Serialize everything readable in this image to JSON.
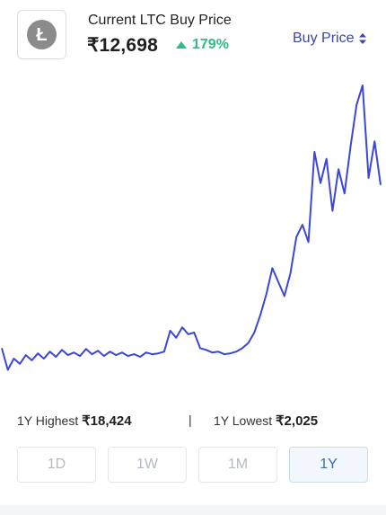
{
  "header": {
    "title": "Current LTC Buy Price",
    "price": "₹12,698",
    "change": "179%",
    "change_color": "#2ebd85",
    "logo_icon": "litecoin-logo",
    "logo_letter": "Ł"
  },
  "price_selector": {
    "label": "Buy Price",
    "icon": "sort-arrows-icon",
    "color": "#3d46a8"
  },
  "chart_data": {
    "type": "line",
    "line_color": "#3b47d6",
    "y_unit": "INR",
    "grid": false,
    "series": [
      {
        "values": [
          3300,
          2050,
          2700,
          2400,
          2900,
          2600,
          3000,
          2700,
          3100,
          2800,
          3200,
          2900,
          3050,
          2850,
          3250,
          2950,
          3150,
          2850,
          3100,
          2900,
          3050,
          2850,
          2950,
          2800,
          3050,
          2950,
          3000,
          3100,
          4300,
          3900,
          4500,
          4100,
          4200,
          3300,
          3200,
          3050,
          3100,
          2950,
          3000,
          3100,
          3300,
          3600,
          4200,
          5200,
          6400,
          7900,
          7100,
          6300,
          7600,
          9700,
          10400,
          9400,
          14600,
          12800,
          14200,
          11200,
          13600,
          12200,
          14900,
          17300,
          18424,
          13100,
          15200,
          12698
        ]
      }
    ],
    "ylim": [
      2025,
      18424
    ]
  },
  "stats": {
    "high_label": "1Y Highest",
    "high_value": "₹18,424",
    "separator": "|",
    "low_label": "1Y Lowest",
    "low_value": "₹2,025"
  },
  "ranges": [
    {
      "label": "1D",
      "active": false
    },
    {
      "label": "1W",
      "active": false
    },
    {
      "label": "1M",
      "active": false
    },
    {
      "label": "1Y",
      "active": true
    }
  ]
}
